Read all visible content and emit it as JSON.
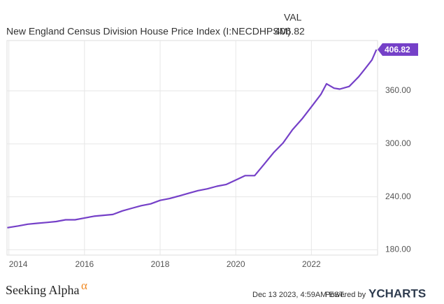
{
  "chart_data": {
    "type": "line",
    "column_header": "VAL",
    "x": [
      2013.96,
      2014.25,
      2014.5,
      2014.75,
      2015,
      2015.25,
      2015.5,
      2015.75,
      2016,
      2016.25,
      2016.5,
      2016.75,
      2017,
      2017.25,
      2017.5,
      2017.75,
      2018,
      2018.25,
      2018.5,
      2018.75,
      2019,
      2019.25,
      2019.5,
      2019.75,
      2020,
      2020.25,
      2020.5,
      2020.75,
      2021,
      2021.25,
      2021.5,
      2021.75,
      2022,
      2022.25,
      2022.4,
      2022.6,
      2022.75,
      2023,
      2023.25,
      2023.4,
      2023.6,
      2023.72
    ],
    "series": [
      {
        "name": "New England Census Division House Price Index (I:NECDHPSM)",
        "color": "#7540c8",
        "values": [
          205,
          207,
          209,
          210,
          211,
          212,
          214,
          214,
          216,
          218,
          219,
          220,
          224,
          227,
          230,
          232,
          236,
          238,
          241,
          244,
          247,
          249,
          252,
          254,
          259,
          264,
          264,
          277,
          290,
          301,
          316,
          328,
          342,
          356,
          368,
          363,
          362,
          365,
          376,
          384,
          395,
          406.82
        ]
      }
    ],
    "xlim": [
      2013.95,
      2023.75
    ],
    "xticks": [
      2014,
      2016,
      2018,
      2020,
      2022
    ],
    "ylim": [
      174,
      417
    ],
    "yticks": [
      {
        "value": 180,
        "label": "180.00"
      },
      {
        "value": 240,
        "label": "240.00"
      },
      {
        "value": 300,
        "label": "300.00"
      },
      {
        "value": 360,
        "label": "360.00"
      }
    ],
    "grid": true,
    "source": "Seeking Alpha",
    "source_mark": "α",
    "timestamp": "Dec 13 2023, 4:59AM EST.",
    "powered_by": "Powered by",
    "brand": "YCHARTS"
  }
}
